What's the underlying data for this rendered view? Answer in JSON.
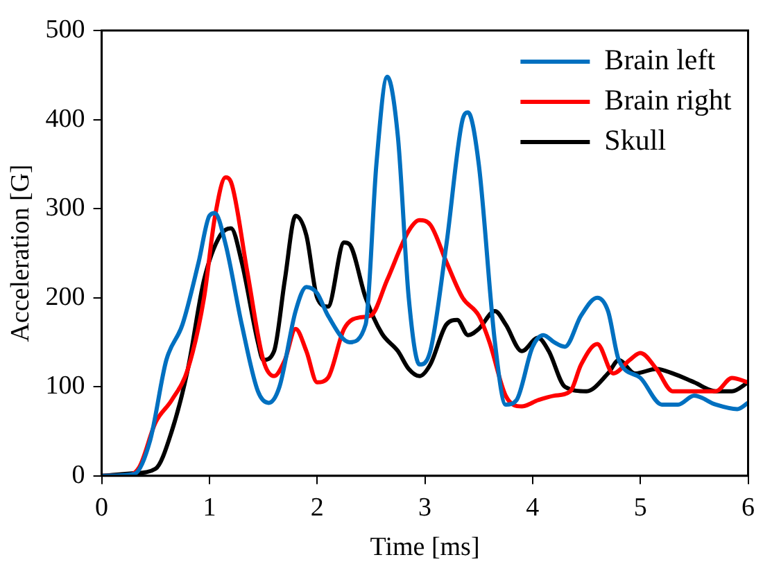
{
  "chart_data": {
    "type": "line",
    "xlabel": "Time [ms]",
    "ylabel": "Acceleration [G]",
    "xlim": [
      0,
      6
    ],
    "xticks": [
      0,
      1,
      2,
      3,
      4,
      5,
      6
    ],
    "ylim": [
      0,
      500
    ],
    "yticks": [
      0,
      100,
      200,
      300,
      400,
      500
    ],
    "grid": false,
    "legend": "top right",
    "marker": "none",
    "line_style": "solid",
    "series": [
      {
        "name": "Brain left",
        "color": "#0070c0",
        "x": [
          0,
          0.3,
          0.45,
          0.6,
          0.75,
          0.9,
          1.0,
          1.05,
          1.15,
          1.3,
          1.45,
          1.55,
          1.65,
          1.8,
          1.9,
          2.0,
          2.1,
          2.3,
          2.45,
          2.55,
          2.65,
          2.75,
          2.85,
          2.95,
          3.05,
          3.2,
          3.35,
          3.4,
          3.5,
          3.65,
          3.75,
          3.85,
          4.0,
          4.1,
          4.2,
          4.3,
          4.45,
          4.6,
          4.7,
          4.8,
          5.0,
          5.2,
          5.35,
          5.5,
          5.7,
          5.9,
          6.0
        ],
        "values": [
          0,
          2,
          40,
          130,
          170,
          240,
          292,
          295,
          260,
          170,
          95,
          82,
          100,
          185,
          212,
          205,
          180,
          150,
          170,
          350,
          448,
          380,
          200,
          125,
          140,
          260,
          400,
          408,
          350,
          150,
          80,
          85,
          145,
          158,
          150,
          145,
          180,
          200,
          185,
          130,
          110,
          80,
          80,
          90,
          80,
          75,
          82
        ]
      },
      {
        "name": "Brain right",
        "color": "#ff0000",
        "x": [
          0,
          0.2,
          0.35,
          0.5,
          0.65,
          0.8,
          0.95,
          1.05,
          1.15,
          1.2,
          1.35,
          1.5,
          1.6,
          1.7,
          1.8,
          1.9,
          2.0,
          2.1,
          2.25,
          2.4,
          2.5,
          2.65,
          2.85,
          2.95,
          3.05,
          3.2,
          3.35,
          3.5,
          3.6,
          3.75,
          3.9,
          4.05,
          4.2,
          4.35,
          4.45,
          4.6,
          4.75,
          4.9,
          5.0,
          5.15,
          5.3,
          5.5,
          5.7,
          5.85,
          6.0
        ],
        "values": [
          0,
          0,
          10,
          60,
          85,
          120,
          200,
          290,
          335,
          330,
          230,
          130,
          112,
          130,
          165,
          140,
          105,
          110,
          165,
          178,
          180,
          220,
          275,
          287,
          282,
          240,
          200,
          180,
          150,
          90,
          78,
          85,
          90,
          95,
          125,
          148,
          115,
          130,
          138,
          120,
          95,
          95,
          95,
          110,
          105
        ]
      },
      {
        "name": "Skull",
        "color": "#000000",
        "x": [
          0,
          0.3,
          0.5,
          0.65,
          0.8,
          0.95,
          1.1,
          1.2,
          1.3,
          1.45,
          1.5,
          1.6,
          1.7,
          1.8,
          1.9,
          2.0,
          2.1,
          2.25,
          2.3,
          2.45,
          2.6,
          2.75,
          2.85,
          2.95,
          3.05,
          3.2,
          3.3,
          3.4,
          3.5,
          3.65,
          3.75,
          3.9,
          4.05,
          4.15,
          4.3,
          4.5,
          4.7,
          4.8,
          4.95,
          5.15,
          5.3,
          5.5,
          5.7,
          5.85,
          6.0
        ],
        "values": [
          0,
          3,
          8,
          50,
          120,
          220,
          270,
          278,
          240,
          150,
          130,
          140,
          220,
          292,
          270,
          200,
          190,
          262,
          260,
          200,
          160,
          140,
          120,
          112,
          125,
          170,
          175,
          158,
          165,
          185,
          170,
          140,
          155,
          140,
          100,
          95,
          115,
          130,
          115,
          120,
          115,
          105,
          95,
          95,
          105
        ]
      }
    ]
  }
}
